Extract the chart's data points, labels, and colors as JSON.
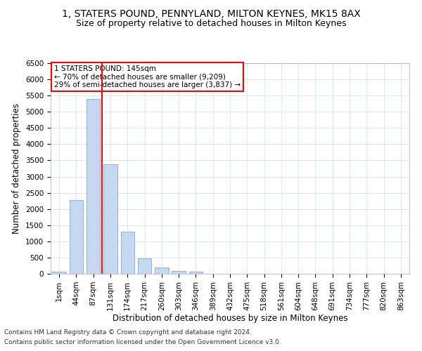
{
  "title": "1, STATERS POUND, PENNYLAND, MILTON KEYNES, MK15 8AX",
  "subtitle": "Size of property relative to detached houses in Milton Keynes",
  "xlabel": "Distribution of detached houses by size in Milton Keynes",
  "ylabel": "Number of detached properties",
  "footnote1": "Contains HM Land Registry data © Crown copyright and database right 2024.",
  "footnote2": "Contains public sector information licensed under the Open Government Licence v3.0.",
  "annotation_line1": "1 STATERS POUND: 145sqm",
  "annotation_line2": "← 70% of detached houses are smaller (9,209)",
  "annotation_line3": "29% of semi-detached houses are larger (3,837) →",
  "bar_color": "#c5d8f0",
  "bar_edge_color": "#7bafd4",
  "vline_color": "red",
  "grid_color": "#dce6f1",
  "categories": [
    "1sqm",
    "44sqm",
    "87sqm",
    "131sqm",
    "174sqm",
    "217sqm",
    "260sqm",
    "303sqm",
    "346sqm",
    "389sqm",
    "432sqm",
    "475sqm",
    "518sqm",
    "561sqm",
    "604sqm",
    "648sqm",
    "691sqm",
    "734sqm",
    "777sqm",
    "820sqm",
    "863sqm"
  ],
  "values": [
    75,
    2280,
    5400,
    3380,
    1300,
    480,
    185,
    90,
    60,
    0,
    0,
    0,
    0,
    0,
    0,
    0,
    0,
    0,
    0,
    0,
    0
  ],
  "ylim": [
    0,
    6500
  ],
  "yticks": [
    0,
    500,
    1000,
    1500,
    2000,
    2500,
    3000,
    3500,
    4000,
    4500,
    5000,
    5500,
    6000,
    6500
  ],
  "vline_x": 2.5,
  "title_fontsize": 10,
  "subtitle_fontsize": 9,
  "axis_label_fontsize": 8.5,
  "tick_fontsize": 7.5,
  "annotation_fontsize": 7.5,
  "footnote_fontsize": 6.5
}
